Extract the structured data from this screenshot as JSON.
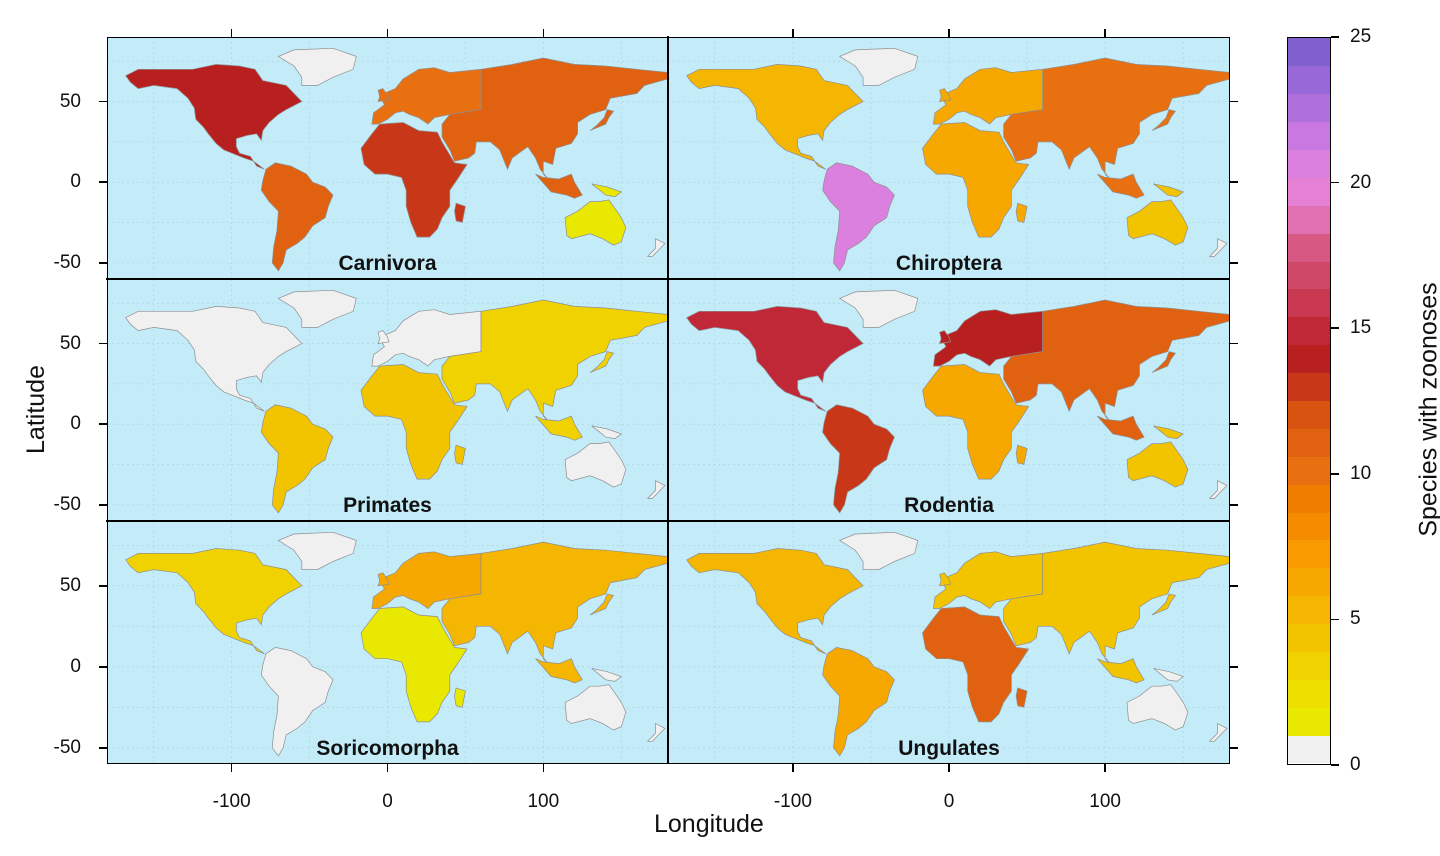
{
  "axes": {
    "xlabel": "Longitude",
    "ylabel": "Latitude",
    "x_ticks": [
      -100,
      0,
      100
    ],
    "y_ticks": [
      50,
      0,
      -50
    ],
    "x_range": [
      -180,
      180
    ],
    "y_range": [
      -60,
      90
    ]
  },
  "panels": [
    {
      "name": "Carnivora",
      "profile": {
        "na": 0.55,
        "sa": 0.45,
        "eu": 0.4,
        "af": 0.5,
        "as": 0.45,
        "au": 0.02
      }
    },
    {
      "name": "Chiroptera",
      "profile": {
        "na": 0.2,
        "sa": 0.82,
        "eu": 0.25,
        "af": 0.25,
        "as": 0.4,
        "au": 0.15
      }
    },
    {
      "name": "Primates",
      "profile": {
        "na": 0.0,
        "sa": 0.15,
        "eu": 0.0,
        "af": 0.15,
        "as": 0.12,
        "au": 0.0
      }
    },
    {
      "name": "Rodentia",
      "profile": {
        "na": 0.6,
        "sa": 0.5,
        "eu": 0.55,
        "af": 0.25,
        "as": 0.45,
        "au": 0.15
      }
    },
    {
      "name": "Soricomorpha",
      "profile": {
        "na": 0.1,
        "sa": 0.0,
        "eu": 0.25,
        "af": 0.05,
        "as": 0.2,
        "au": 0.0
      }
    },
    {
      "name": "Ungulates",
      "profile": {
        "na": 0.2,
        "sa": 0.25,
        "eu": 0.15,
        "af": 0.45,
        "as": 0.15,
        "au": 0.0
      }
    }
  ],
  "colorbar": {
    "label": "Species with zoonoses",
    "ticks": [
      25,
      20,
      15,
      10,
      5,
      0
    ],
    "range": [
      0,
      25
    ],
    "colors": [
      "#f0f0f0",
      "#e8e800",
      "#eddf00",
      "#f0d200",
      "#f2c400",
      "#f4b600",
      "#f6a800",
      "#f89a00",
      "#f58c00",
      "#ef7e00",
      "#e87010",
      "#e06210",
      "#d85210",
      "#c83818",
      "#b82020",
      "#c02838",
      "#c83850",
      "#d04868",
      "#d85884",
      "#e070b0",
      "#e680d4",
      "#dc80e0",
      "#c878e0",
      "#b070dc",
      "#9868d8",
      "#8060cc"
    ],
    "nodata_color": "#f0f0f0",
    "ocean_color": "#c3ebf8"
  }
}
